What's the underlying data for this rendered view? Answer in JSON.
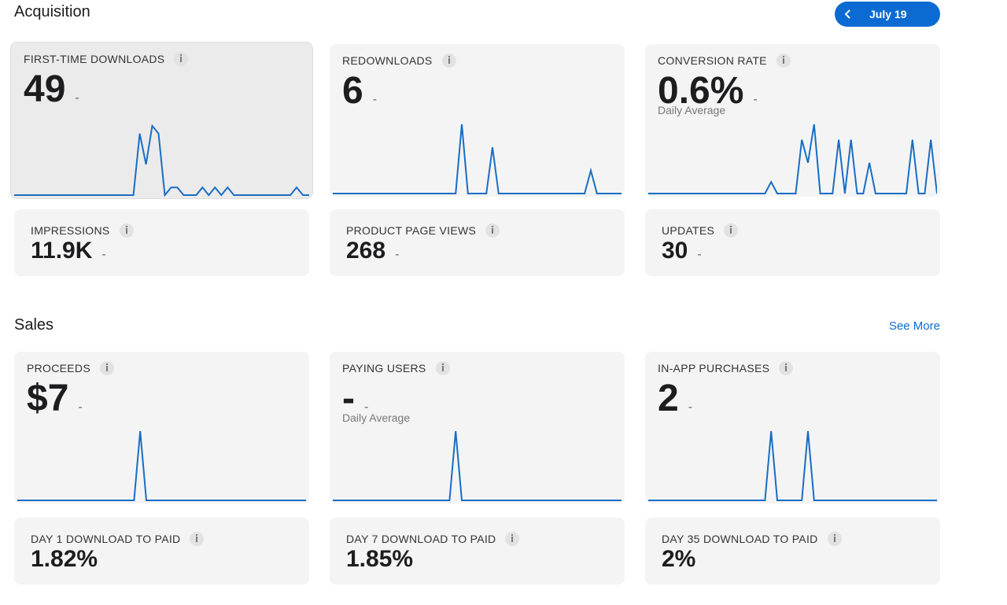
{
  "header": {
    "title": "Acquisition",
    "date": "July 19"
  },
  "acquisition": {
    "charts": [
      {
        "label": "FIRST-TIME DOWNLOADS",
        "value": "49",
        "delta": "-",
        "trend": [
          0,
          0,
          0,
          0,
          0,
          0,
          0,
          0,
          0,
          0,
          0,
          0,
          0,
          0,
          0,
          0,
          0,
          0,
          0,
          0,
          8,
          4,
          9,
          8,
          0,
          1,
          1,
          0,
          0,
          0,
          1,
          0,
          1,
          0,
          1,
          0,
          0,
          0,
          0,
          0,
          0,
          0,
          0,
          0,
          0,
          1,
          0,
          0
        ]
      },
      {
        "label": "REDOWNLOADS",
        "value": "6",
        "delta": "-",
        "trend": [
          0,
          0,
          0,
          0,
          0,
          0,
          0,
          0,
          0,
          0,
          0,
          0,
          0,
          0,
          0,
          0,
          0,
          0,
          0,
          0,
          0,
          9,
          0,
          0,
          0,
          0,
          6,
          0,
          0,
          0,
          0,
          0,
          0,
          0,
          0,
          0,
          0,
          0,
          0,
          0,
          0,
          0,
          3,
          0,
          0,
          0,
          0,
          0
        ]
      },
      {
        "label": "CONVERSION RATE",
        "value": "0.6%",
        "delta": "-",
        "subtitle": "Daily Average",
        "trend": [
          0,
          0,
          0,
          0,
          0,
          0,
          0,
          0,
          0,
          0,
          0,
          0,
          0,
          0,
          0,
          0,
          0,
          0,
          0,
          0,
          1.5,
          0,
          0,
          0,
          0,
          7,
          4,
          9,
          0,
          0,
          0,
          7,
          0,
          7,
          0,
          0,
          4,
          0,
          0,
          0,
          0,
          0,
          0,
          7,
          0,
          0,
          7,
          0
        ]
      }
    ],
    "metrics": [
      {
        "label": "IMPRESSIONS",
        "value": "11.9K",
        "delta": "-"
      },
      {
        "label": "PRODUCT PAGE VIEWS",
        "value": "268",
        "delta": "-"
      },
      {
        "label": "UPDATES",
        "value": "30",
        "delta": "-"
      }
    ]
  },
  "sales": {
    "title": "Sales",
    "link": "See More",
    "charts": [
      {
        "label": "PROCEEDS",
        "value": "$7",
        "delta": "-",
        "trend": [
          0,
          0,
          0,
          0,
          0,
          0,
          0,
          0,
          0,
          0,
          0,
          0,
          0,
          0,
          0,
          0,
          0,
          0,
          0,
          0,
          1,
          0,
          0,
          0,
          0,
          0,
          0,
          0,
          0,
          0,
          0,
          0,
          0,
          0,
          0,
          0,
          0,
          0,
          0,
          0,
          0,
          0,
          0,
          0,
          0,
          0,
          0,
          0
        ]
      },
      {
        "label": "PAYING USERS",
        "value": "-",
        "delta": "-",
        "subtitle": "Daily Average",
        "trend": [
          0,
          0,
          0,
          0,
          0,
          0,
          0,
          0,
          0,
          0,
          0,
          0,
          0,
          0,
          0,
          0,
          0,
          0,
          0,
          0,
          1,
          0,
          0,
          0,
          0,
          0,
          0,
          0,
          0,
          0,
          0,
          0,
          0,
          0,
          0,
          0,
          0,
          0,
          0,
          0,
          0,
          0,
          0,
          0,
          0,
          0,
          0,
          0
        ]
      },
      {
        "label": "IN-APP PURCHASES",
        "value": "2",
        "delta": "-",
        "trend": [
          0,
          0,
          0,
          0,
          0,
          0,
          0,
          0,
          0,
          0,
          0,
          0,
          0,
          0,
          0,
          0,
          0,
          0,
          0,
          0,
          1,
          0,
          0,
          0,
          0,
          0,
          1,
          0,
          0,
          0,
          0,
          0,
          0,
          0,
          0,
          0,
          0,
          0,
          0,
          0,
          0,
          0,
          0,
          0,
          0,
          0,
          0,
          0
        ]
      }
    ],
    "metrics": [
      {
        "label": "DAY 1 DOWNLOAD TO PAID",
        "value": "1.82%"
      },
      {
        "label": "DAY 7 DOWNLOAD TO PAID",
        "value": "1.85%"
      },
      {
        "label": "DAY 35 DOWNLOAD TO PAID",
        "value": "2%"
      }
    ]
  }
}
